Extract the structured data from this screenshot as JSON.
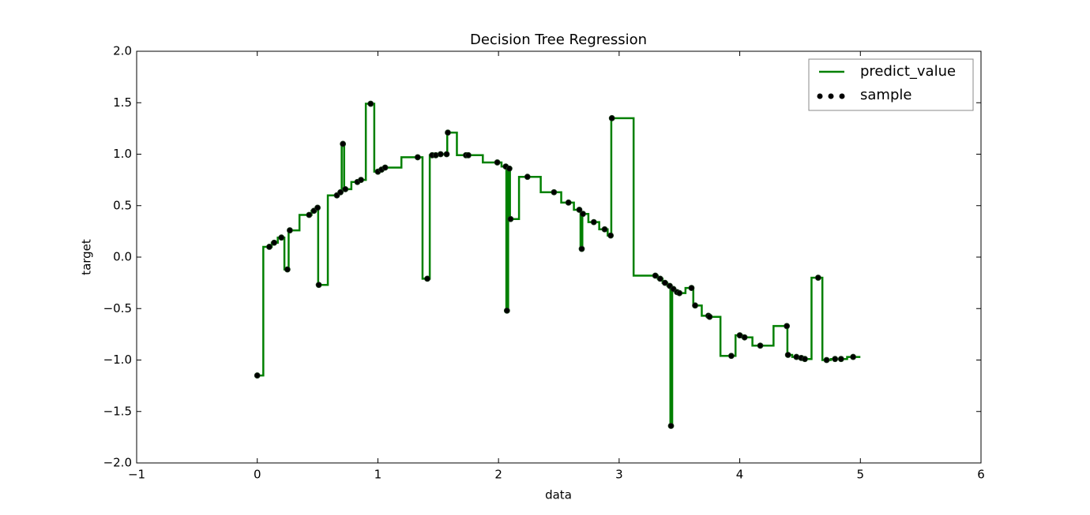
{
  "chart_data": {
    "type": "line",
    "title": "Decision Tree Regression",
    "xlabel": "data",
    "ylabel": "target",
    "xlim": [
      -1,
      6
    ],
    "ylim": [
      -2,
      2
    ],
    "xticks": [
      {
        "value": -1,
        "label": "−1"
      },
      0,
      1,
      2,
      3,
      4,
      5,
      6
    ],
    "yticks": [
      {
        "value": -2,
        "label": "−2.0"
      },
      {
        "value": -1.5,
        "label": "−1.5"
      },
      {
        "value": -1,
        "label": "−1.0"
      },
      {
        "value": -0.5,
        "label": "−0.5"
      },
      {
        "value": 0,
        "label": "0.0"
      },
      0.5,
      {
        "value": 1,
        "label": "1.0"
      },
      1.5,
      {
        "value": 2,
        "label": "2.0"
      }
    ],
    "legend": "upper right",
    "series": [
      {
        "name": "predict_value",
        "type": "line",
        "color": "#008000",
        "x": [
          0,
          0.05,
          0.05,
          0.12,
          0.12,
          0.17,
          0.17,
          0.225,
          0.225,
          0.26,
          0.26,
          0.35,
          0.35,
          0.45,
          0.45,
          0.485,
          0.485,
          0.505,
          0.505,
          0.585,
          0.585,
          0.675,
          0.675,
          0.7,
          0.7,
          0.72,
          0.72,
          0.78,
          0.78,
          0.845,
          0.845,
          0.9,
          0.9,
          0.97,
          0.97,
          1.015,
          1.015,
          1.045,
          1.045,
          1.195,
          1.195,
          1.37,
          1.37,
          1.43,
          1.43,
          1.465,
          1.465,
          1.5,
          1.5,
          1.545,
          1.545,
          1.575,
          1.575,
          1.655,
          1.655,
          1.74,
          1.74,
          1.87,
          1.87,
          2.025,
          2.025,
          2.065,
          2.065,
          2.08,
          2.08,
          2.095,
          2.095,
          2.17,
          2.17,
          2.35,
          2.35,
          2.52,
          2.52,
          2.625,
          2.625,
          2.68,
          2.68,
          2.695,
          2.695,
          2.745,
          2.745,
          2.835,
          2.835,
          2.905,
          2.905,
          2.935,
          2.935,
          3.12,
          3.12,
          3.32,
          3.32,
          3.36,
          3.36,
          3.4,
          3.4,
          3.425,
          3.425,
          3.44,
          3.44,
          3.465,
          3.465,
          3.49,
          3.49,
          3.55,
          3.55,
          3.615,
          3.615,
          3.685,
          3.685,
          3.745,
          3.745,
          3.84,
          3.84,
          3.965,
          3.965,
          4.02,
          4.02,
          4.105,
          4.105,
          4.28,
          4.28,
          4.395,
          4.395,
          4.435,
          4.435,
          4.49,
          4.49,
          4.525,
          4.525,
          4.595,
          4.595,
          4.685,
          4.685,
          4.755,
          4.755,
          4.815,
          4.815,
          4.89,
          4.89,
          5
        ],
        "values": [
          -1.15,
          -1.15,
          0.1,
          0.1,
          0.14,
          0.14,
          0.19,
          0.19,
          -0.12,
          -0.12,
          0.26,
          0.26,
          0.41,
          0.41,
          0.45,
          0.45,
          0.48,
          0.48,
          -0.27,
          -0.27,
          0.6,
          0.6,
          0.63,
          0.63,
          1.1,
          1.1,
          0.66,
          0.66,
          0.73,
          0.73,
          0.75,
          0.75,
          1.49,
          1.49,
          0.83,
          0.83,
          0.85,
          0.85,
          0.87,
          0.87,
          0.97,
          0.97,
          -0.21,
          -0.21,
          0.99,
          0.99,
          0.99,
          0.99,
          1.0,
          1.0,
          1.0,
          1.0,
          1.21,
          1.21,
          0.99,
          0.99,
          0.99,
          0.99,
          0.92,
          0.92,
          0.88,
          0.88,
          -0.52,
          -0.52,
          0.86,
          0.86,
          0.37,
          0.37,
          0.78,
          0.78,
          0.63,
          0.63,
          0.53,
          0.53,
          0.46,
          0.46,
          0.08,
          0.08,
          0.42,
          0.42,
          0.34,
          0.34,
          0.27,
          0.27,
          0.21,
          0.21,
          1.35,
          1.35,
          -0.18,
          -0.18,
          -0.21,
          -0.21,
          -0.25,
          -0.25,
          -0.28,
          -0.28,
          -1.64,
          -1.64,
          -0.31,
          -0.31,
          -0.34,
          -0.34,
          -0.35,
          -0.35,
          -0.3,
          -0.3,
          -0.47,
          -0.47,
          -0.57,
          -0.57,
          -0.58,
          -0.58,
          -0.96,
          -0.96,
          -0.76,
          -0.76,
          -0.78,
          -0.78,
          -0.86,
          -0.86,
          -0.67,
          -0.67,
          -0.95,
          -0.95,
          -0.97,
          -0.97,
          -0.98,
          -0.98,
          -0.99,
          -0.99,
          -0.2,
          -0.2,
          -1.0,
          -1.0,
          -0.99,
          -0.99,
          -0.99,
          -0.99,
          -0.97,
          -0.97
        ]
      },
      {
        "name": "sample",
        "type": "scatter",
        "color": "#000000",
        "x": [
          0,
          0.1,
          0.14,
          0.2,
          0.25,
          0.27,
          0.43,
          0.47,
          0.5,
          0.51,
          0.66,
          0.69,
          0.71,
          0.73,
          0.83,
          0.86,
          0.94,
          1.0,
          1.03,
          1.06,
          1.33,
          1.41,
          1.45,
          1.48,
          1.52,
          1.57,
          1.58,
          1.73,
          1.75,
          1.99,
          2.06,
          2.07,
          2.09,
          2.1,
          2.24,
          2.46,
          2.58,
          2.67,
          2.69,
          2.7,
          2.79,
          2.88,
          2.93,
          2.94,
          3.3,
          3.34,
          3.38,
          3.42,
          3.43,
          3.45,
          3.48,
          3.5,
          3.6,
          3.63,
          3.74,
          3.75,
          3.93,
          4.0,
          4.04,
          4.17,
          4.39,
          4.4,
          4.47,
          4.51,
          4.54,
          4.65,
          4.72,
          4.79,
          4.84,
          4.94
        ],
        "values": [
          -1.15,
          0.1,
          0.14,
          0.19,
          -0.12,
          0.26,
          0.41,
          0.45,
          0.48,
          -0.27,
          0.6,
          0.63,
          1.1,
          0.66,
          0.73,
          0.75,
          1.49,
          0.83,
          0.85,
          0.87,
          0.97,
          -0.21,
          0.99,
          0.99,
          1.0,
          1.0,
          1.21,
          0.99,
          0.99,
          0.92,
          0.88,
          -0.52,
          0.86,
          0.37,
          0.78,
          0.63,
          0.53,
          0.46,
          0.08,
          0.42,
          0.34,
          0.27,
          0.21,
          1.35,
          -0.18,
          -0.21,
          -0.25,
          -0.28,
          -1.64,
          -0.31,
          -0.34,
          -0.35,
          -0.3,
          -0.47,
          -0.57,
          -0.58,
          -0.96,
          -0.76,
          -0.78,
          -0.86,
          -0.67,
          -0.95,
          -0.97,
          -0.98,
          -0.99,
          -0.2,
          -1.0,
          -0.99,
          -0.99,
          -0.97
        ]
      }
    ]
  }
}
